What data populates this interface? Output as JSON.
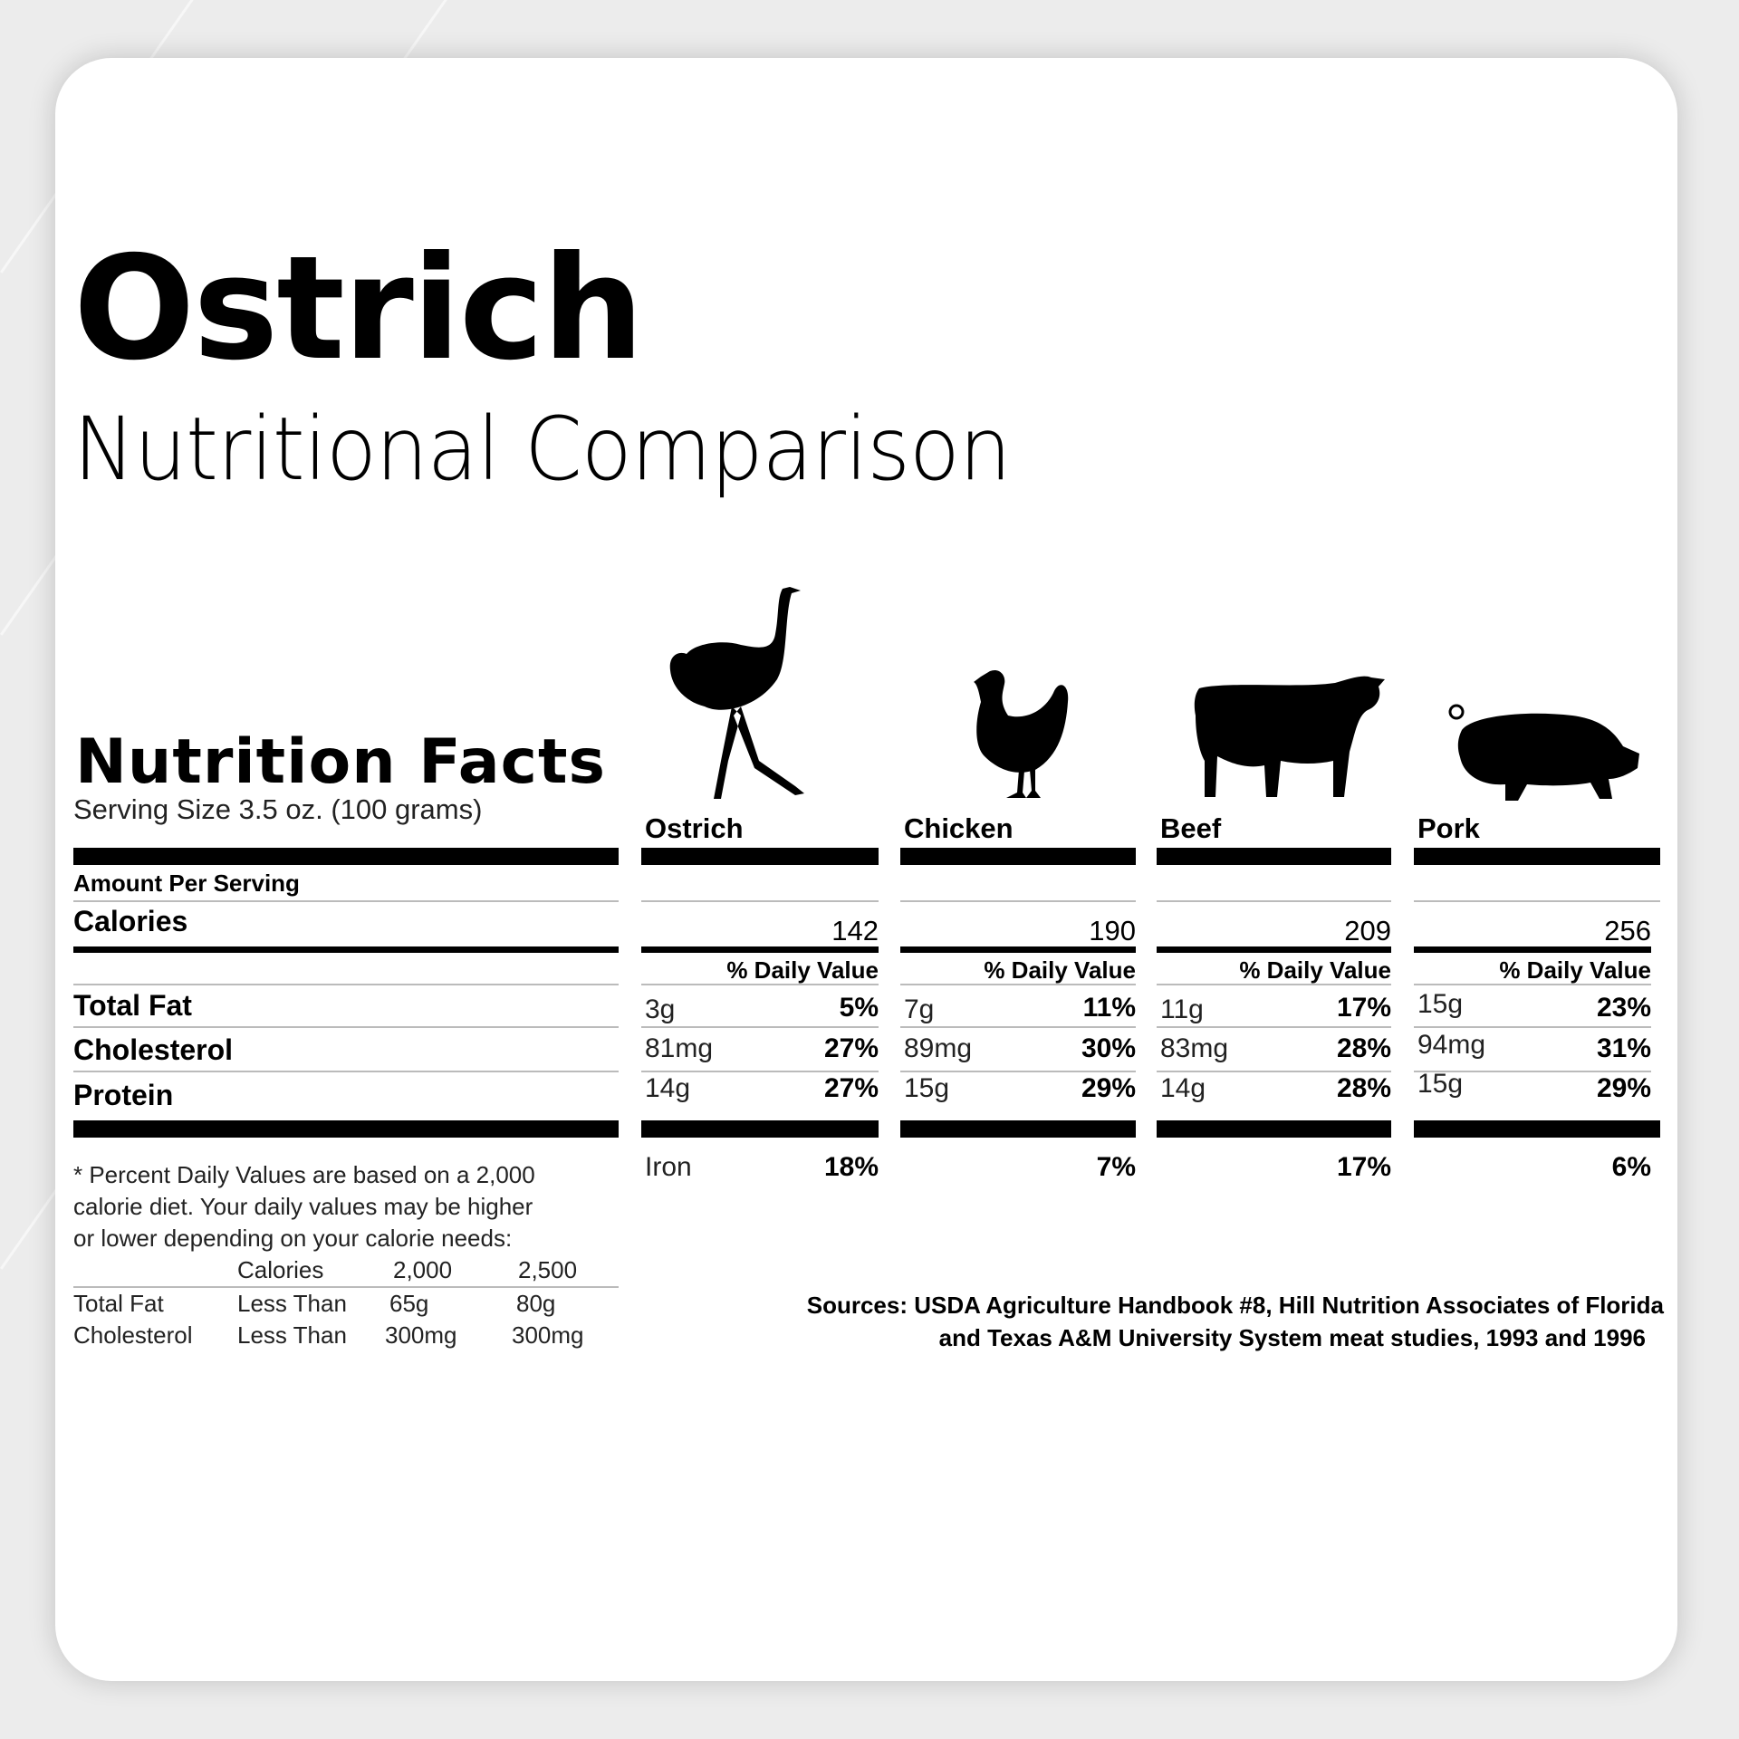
{
  "header": {
    "title": "Ostrich",
    "subtitle": "Nutritional Comparison"
  },
  "facts": {
    "heading": "Nutrition Facts",
    "serving_size": "Serving Size 3.5 oz. (100 grams)",
    "amount_per_serving": "Amount Per Serving",
    "rows": {
      "calories": "Calories",
      "total_fat": "Total Fat",
      "cholesterol": "Cholesterol",
      "protein": "Protein"
    },
    "daily_value_label": "% Daily Value",
    "iron_label": "Iron"
  },
  "animals": [
    {
      "name": "Ostrich",
      "icon": "ostrich-icon",
      "calories": "142",
      "fat": "3g",
      "fat_pct": "5%",
      "chol": "81mg",
      "chol_pct": "27%",
      "protein": "14g",
      "protein_pct": "27%",
      "iron_pct": "18%"
    },
    {
      "name": "Chicken",
      "icon": "chicken-icon",
      "calories": "190",
      "fat": "7g",
      "fat_pct": "11%",
      "chol": "89mg",
      "chol_pct": "30%",
      "protein": "15g",
      "protein_pct": "29%",
      "iron_pct": "7%"
    },
    {
      "name": "Beef",
      "icon": "cow-icon",
      "calories": "209",
      "fat": "11g",
      "fat_pct": "17%",
      "chol": "83mg",
      "chol_pct": "28%",
      "protein": "14g",
      "protein_pct": "28%",
      "iron_pct": "17%"
    },
    {
      "name": "Pork",
      "icon": "pig-icon",
      "calories": "256",
      "fat": "15g",
      "fat_pct": "23%",
      "chol": "94mg",
      "chol_pct": "31%",
      "protein": "15g",
      "protein_pct": "29%",
      "iron_pct": "6%"
    }
  ],
  "footnote": {
    "lines": [
      "* Percent Daily Values are based on a 2,000",
      "calorie diet. Your daily values may be higher",
      "or lower depending on your calorie needs:"
    ],
    "table": {
      "header": [
        "",
        "Calories",
        "2,000",
        "2,500"
      ],
      "rows": [
        [
          "Total Fat",
          "Less Than",
          "65g",
          "80g"
        ],
        [
          "Cholesterol",
          "Less Than",
          "300mg",
          "300mg"
        ]
      ]
    }
  },
  "sources": [
    "Sources: USDA Agriculture Handbook #8, Hill Nutrition Associates of Florida",
    "and Texas A&M University System meat studies, 1993 and 1996"
  ]
}
